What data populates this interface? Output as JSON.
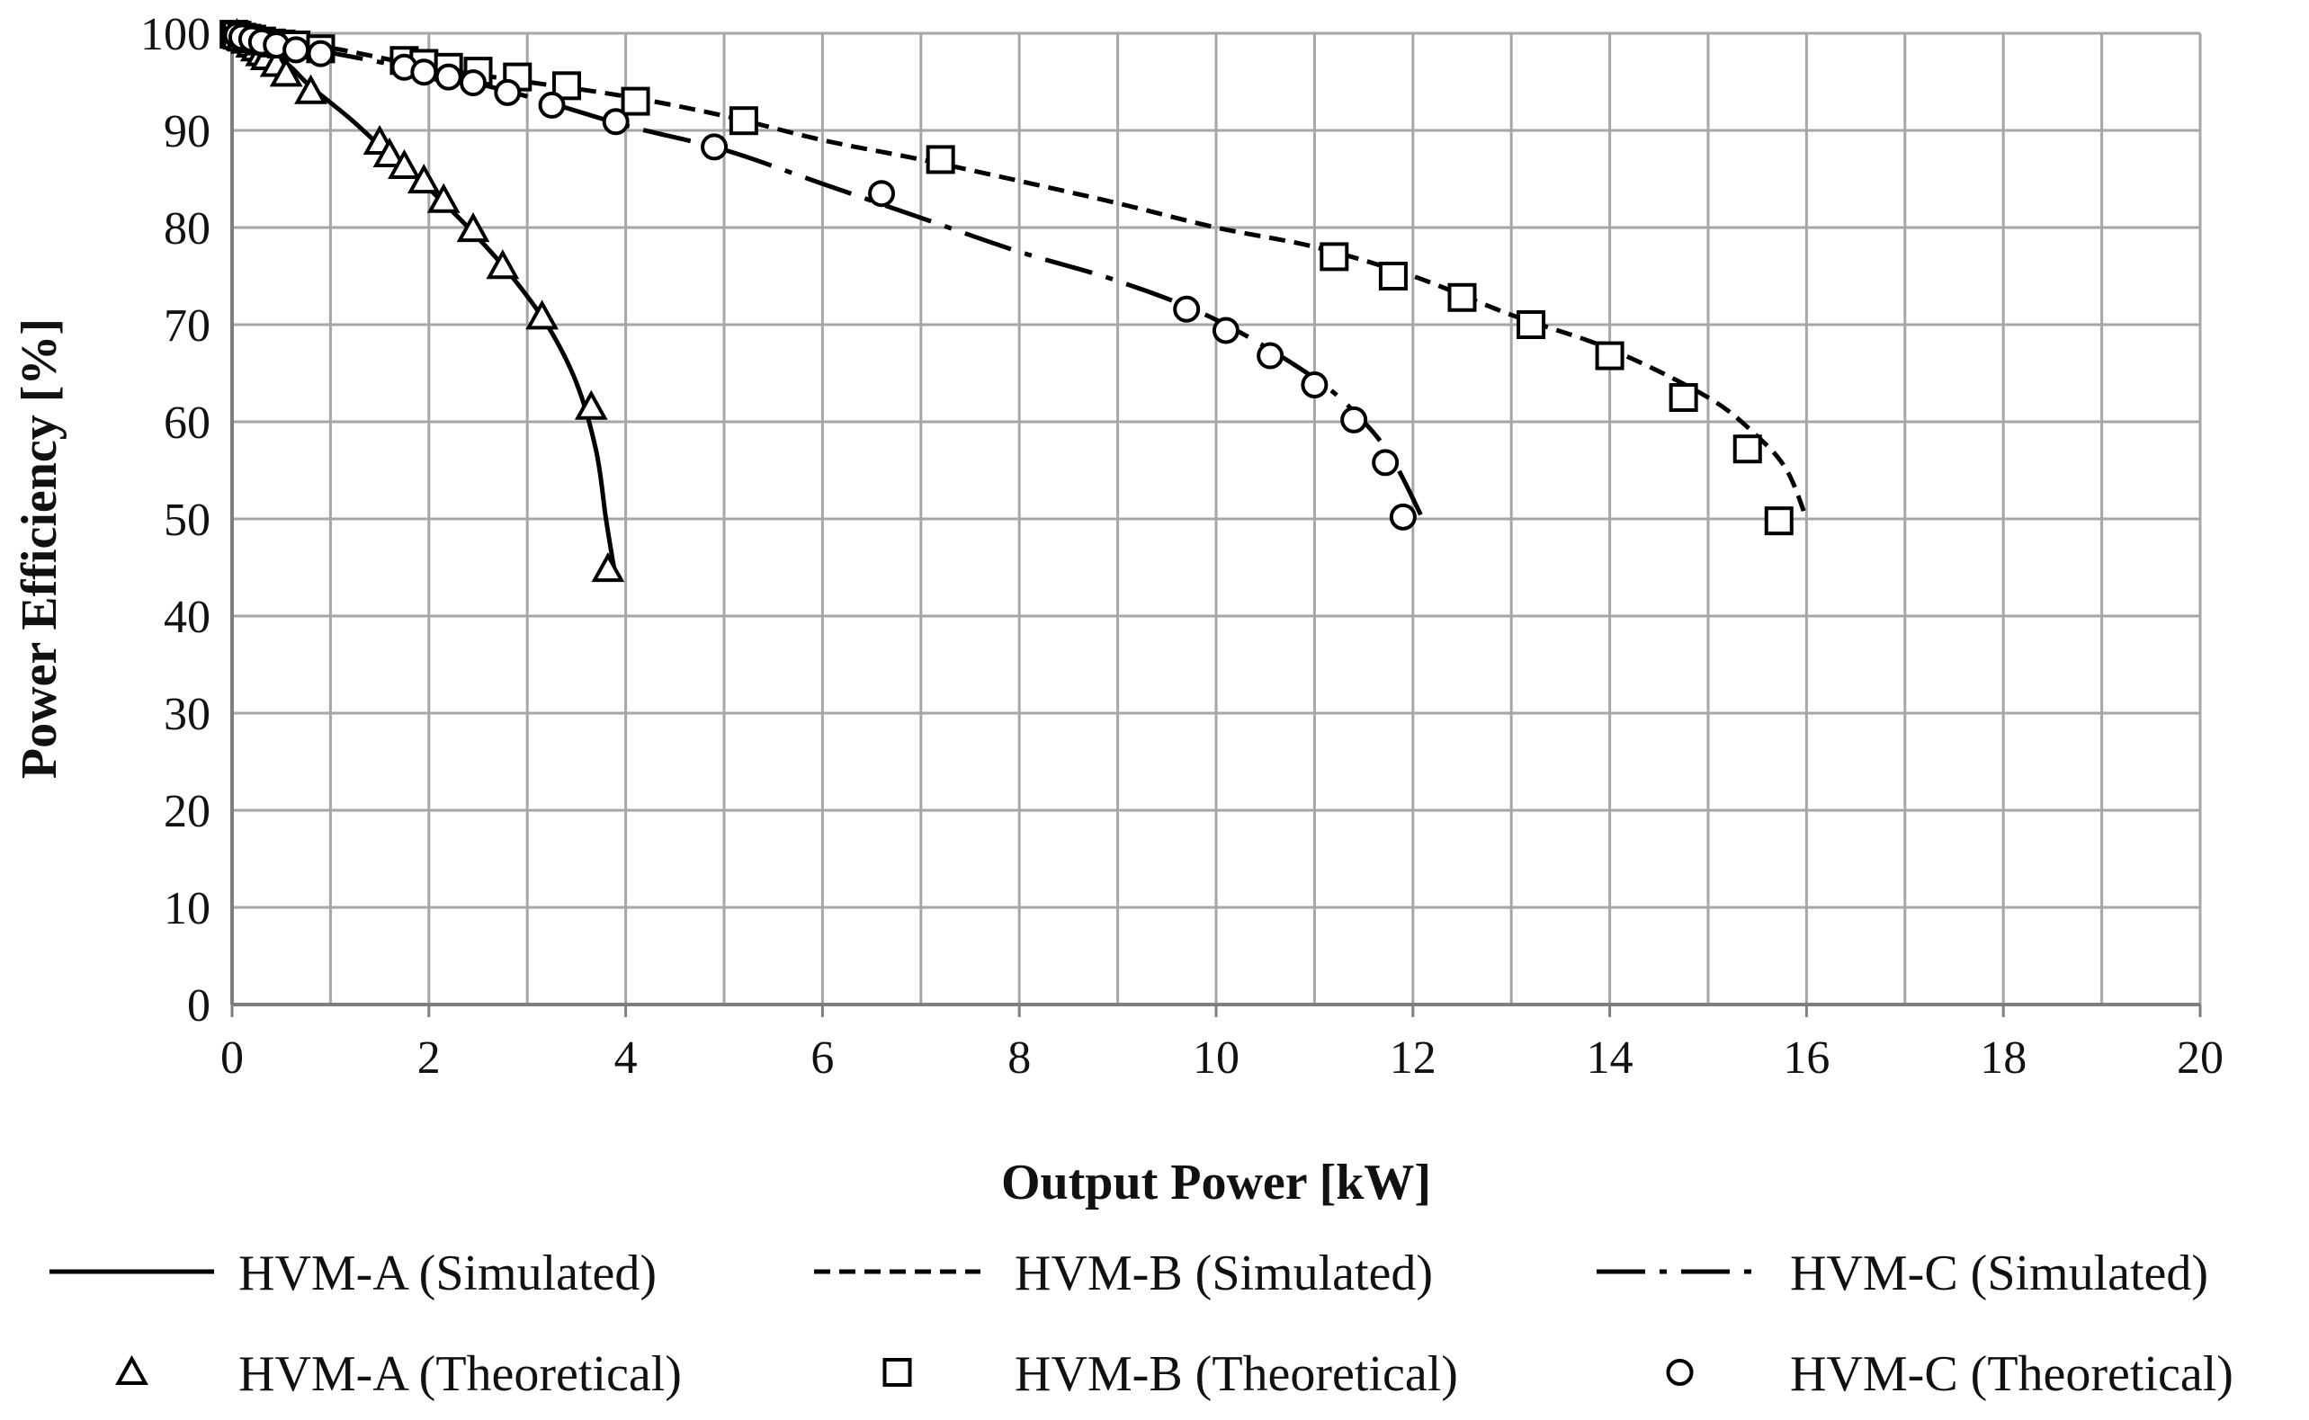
{
  "chart_data": {
    "type": "line",
    "title": "",
    "xlabel": "Output Power [kW]",
    "ylabel": "Power Efficiency [%]",
    "xlim": [
      0,
      20
    ],
    "ylim": [
      0,
      100
    ],
    "x_ticks": [
      0,
      2,
      4,
      6,
      8,
      10,
      12,
      14,
      16,
      18,
      20
    ],
    "y_ticks": [
      0,
      10,
      20,
      30,
      40,
      50,
      60,
      70,
      80,
      90,
      100
    ],
    "grid": true,
    "legend_position": "bottom",
    "series": [
      {
        "name": "HVM-A (Simulated)",
        "kind": "line",
        "style": "solid",
        "points": [
          [
            0,
            100
          ],
          [
            0.2,
            99
          ],
          [
            0.4,
            98
          ],
          [
            0.6,
            96.5
          ],
          [
            0.8,
            94.5
          ],
          [
            1.2,
            91.2
          ],
          [
            1.6,
            87.5
          ],
          [
            2.0,
            84
          ],
          [
            2.4,
            80
          ],
          [
            2.8,
            75.5
          ],
          [
            3.2,
            70
          ],
          [
            3.5,
            64
          ],
          [
            3.7,
            57
          ],
          [
            3.8,
            50
          ],
          [
            3.88,
            45
          ]
        ]
      },
      {
        "name": "HVM-B (Simulated)",
        "kind": "line",
        "style": "dashed",
        "points": [
          [
            0,
            100
          ],
          [
            1,
            98.5
          ],
          [
            2,
            96.5
          ],
          [
            3,
            95
          ],
          [
            4,
            93.5
          ],
          [
            5,
            91.5
          ],
          [
            6,
            89
          ],
          [
            7,
            87
          ],
          [
            8,
            84.8
          ],
          [
            9,
            82.5
          ],
          [
            10,
            80
          ],
          [
            11,
            78
          ],
          [
            12,
            75
          ],
          [
            13,
            71
          ],
          [
            14,
            67.5
          ],
          [
            15,
            62.5
          ],
          [
            15.5,
            58.5
          ],
          [
            15.8,
            55
          ],
          [
            16.0,
            50
          ]
        ]
      },
      {
        "name": "HVM-C (Simulated)",
        "kind": "line",
        "style": "dashdot",
        "points": [
          [
            0,
            100
          ],
          [
            1,
            98
          ],
          [
            2,
            96
          ],
          [
            3,
            93.5
          ],
          [
            4,
            90.5
          ],
          [
            5,
            88
          ],
          [
            6,
            84.5
          ],
          [
            7,
            81
          ],
          [
            8,
            77.5
          ],
          [
            9,
            74.5
          ],
          [
            10,
            70.5
          ],
          [
            11,
            64.5
          ],
          [
            11.5,
            60
          ],
          [
            11.8,
            56
          ],
          [
            12.1,
            50
          ]
        ]
      },
      {
        "name": "HVM-A (Theoretical)",
        "kind": "marker",
        "marker": "triangle",
        "points": [
          [
            0.05,
            99.8
          ],
          [
            0.1,
            99.5
          ],
          [
            0.15,
            99.2
          ],
          [
            0.2,
            98.8
          ],
          [
            0.25,
            98.4
          ],
          [
            0.3,
            97.9
          ],
          [
            0.35,
            97.5
          ],
          [
            0.45,
            96.8
          ],
          [
            0.55,
            95.8
          ],
          [
            0.8,
            94
          ],
          [
            1.5,
            88.8
          ],
          [
            1.6,
            87.5
          ],
          [
            1.75,
            86.3
          ],
          [
            1.95,
            84.8
          ],
          [
            2.15,
            82.8
          ],
          [
            2.45,
            79.8
          ],
          [
            2.75,
            76
          ],
          [
            3.15,
            70.8
          ],
          [
            3.65,
            61.5
          ],
          [
            3.82,
            44.8
          ]
        ]
      },
      {
        "name": "HVM-B (Theoretical)",
        "kind": "marker",
        "marker": "square",
        "points": [
          [
            0.02,
            99.9
          ],
          [
            0.05,
            99.8
          ],
          [
            0.1,
            99.6
          ],
          [
            0.15,
            99.5
          ],
          [
            0.2,
            99.4
          ],
          [
            0.3,
            99.2
          ],
          [
            0.4,
            99
          ],
          [
            0.5,
            98.9
          ],
          [
            0.65,
            98.8
          ],
          [
            0.9,
            98.4
          ],
          [
            1.75,
            97.2
          ],
          [
            1.95,
            96.9
          ],
          [
            2.2,
            96.5
          ],
          [
            2.5,
            96.1
          ],
          [
            2.9,
            95.5
          ],
          [
            3.4,
            94.6
          ],
          [
            4.1,
            93
          ],
          [
            5.2,
            91
          ],
          [
            7.2,
            87
          ],
          [
            11.2,
            77
          ],
          [
            11.8,
            75
          ],
          [
            12.5,
            72.8
          ],
          [
            13.2,
            70
          ],
          [
            14,
            66.8
          ],
          [
            14.75,
            62.5
          ],
          [
            15.4,
            57.2
          ],
          [
            15.72,
            49.8
          ]
        ]
      },
      {
        "name": "HVM-C (Theoretical)",
        "kind": "marker",
        "marker": "circle",
        "points": [
          [
            0.05,
            99.8
          ],
          [
            0.1,
            99.6
          ],
          [
            0.2,
            99.4
          ],
          [
            0.3,
            99.1
          ],
          [
            0.45,
            98.8
          ],
          [
            0.65,
            98.3
          ],
          [
            0.9,
            97.9
          ],
          [
            1.75,
            96.5
          ],
          [
            1.95,
            96
          ],
          [
            2.2,
            95.5
          ],
          [
            2.45,
            94.9
          ],
          [
            2.8,
            93.9
          ],
          [
            3.25,
            92.6
          ],
          [
            3.9,
            90.9
          ],
          [
            4.9,
            88.3
          ],
          [
            6.6,
            83.5
          ],
          [
            9.7,
            71.6
          ],
          [
            10.1,
            69.4
          ],
          [
            10.55,
            66.8
          ],
          [
            11,
            63.8
          ],
          [
            11.4,
            60.2
          ],
          [
            11.72,
            55.8
          ],
          [
            11.9,
            50.2
          ]
        ]
      }
    ]
  }
}
